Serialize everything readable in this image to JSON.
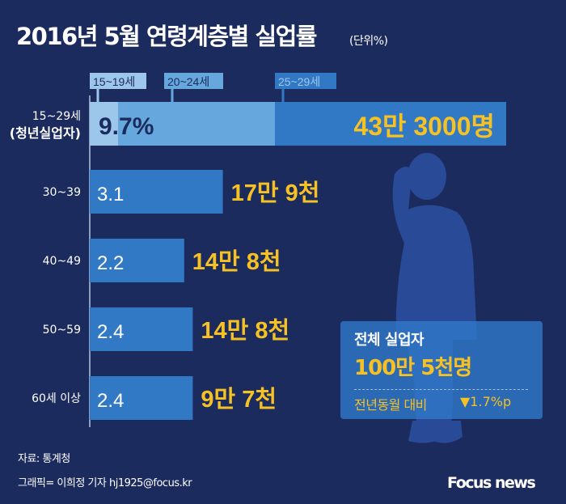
{
  "title": "2016년 5월 연령계층별 실업률",
  "unit": "(단위%)",
  "chart_data": {
    "type": "bar",
    "orientation": "horizontal",
    "title": "2016년 5월 연령계층별 실업률",
    "unit": "(단위%)",
    "categories": [
      "15~29세 (청년실업자)",
      "30~39",
      "40~49",
      "50~59",
      "60세 이상"
    ],
    "category_lines": [
      [
        "15~29세",
        "(청년실업자)"
      ],
      [
        "30~39"
      ],
      [
        "40~49"
      ],
      [
        "50~59"
      ],
      [
        "60세 이상"
      ]
    ],
    "values": [
      9.7,
      3.1,
      2.2,
      2.4,
      2.4
    ],
    "value_labels": [
      "9.7%",
      "3.1",
      "2.2",
      "2.4",
      "2.4"
    ],
    "count_labels": [
      "43만 3000명",
      "17만 9천",
      "14만 8천",
      "14만 8천",
      "9만 7천"
    ],
    "sub_segments": [
      "15~19세",
      "20~24세",
      "25~29세"
    ]
  },
  "summary": {
    "label": "전체 실업자",
    "value": "100만 5천명",
    "compare_label": "전년동월 대비",
    "change": "▼1.7%p"
  },
  "source": "자료: 통계청",
  "credit": "그래픽= 이희정 기자 hj1925@focus.kr",
  "logo": "Focus news",
  "colors": {
    "background": "#1c2b5e",
    "bar": "#3179c4",
    "light": "#9cc6ea",
    "mid": "#66a8dd",
    "count": "#f5c123"
  }
}
